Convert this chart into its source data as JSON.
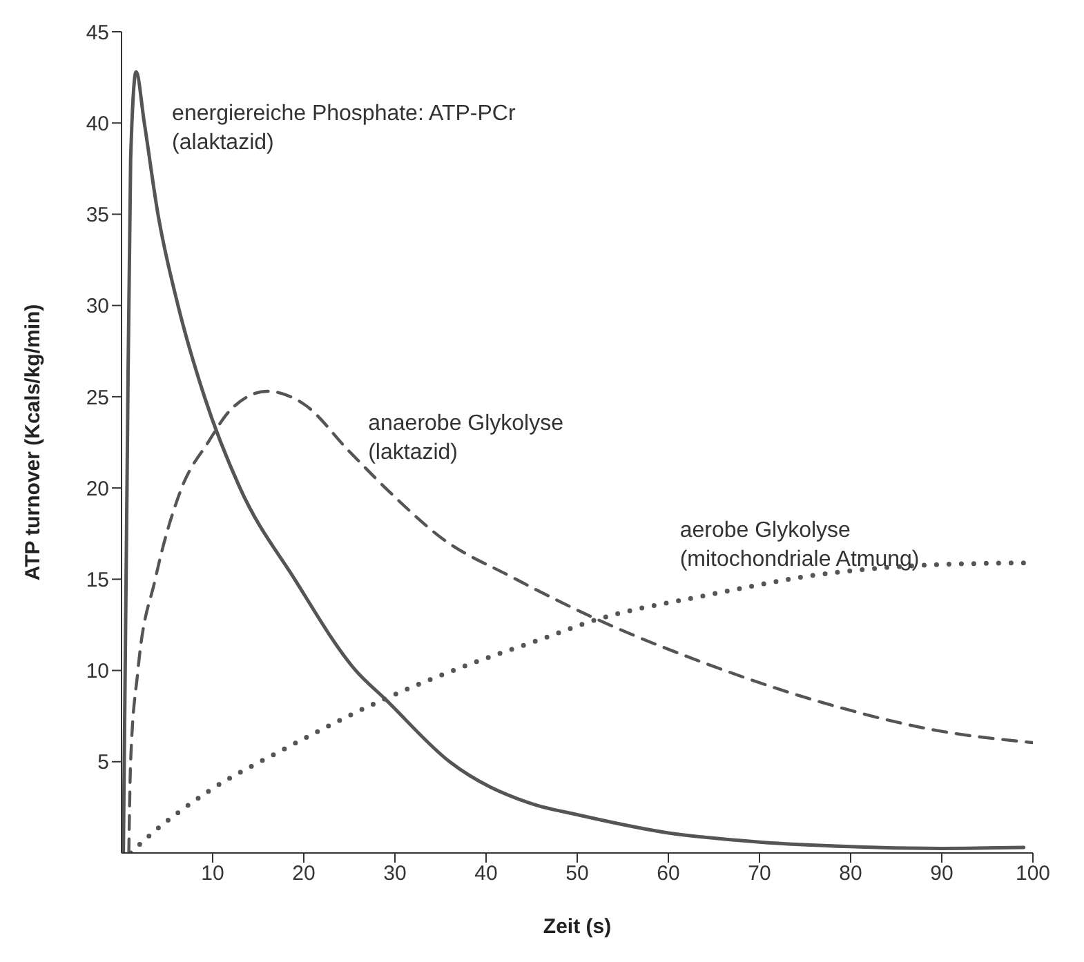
{
  "chart_data": {
    "type": "line",
    "xlabel": "Zeit (s)",
    "ylabel": "ATP turnover (Kcals/kg/min)",
    "xlim": [
      0,
      100
    ],
    "xticks": [
      10,
      20,
      30,
      40,
      50,
      60,
      70,
      80,
      90,
      100
    ],
    "ylim": [
      0,
      45
    ],
    "yticks": [
      5,
      10,
      15,
      20,
      25,
      30,
      35,
      40,
      45
    ],
    "grid": false,
    "marker": "none",
    "series": [
      {
        "name": "energiereiche Phosphate: ATP-PCr\n(alaktazid)",
        "color": "#555555",
        "line_style": "solid",
        "x": [
          0.2,
          0.6,
          1,
          1.6,
          2.5,
          4,
          6.2,
          9.1,
          13,
          19,
          25.7,
          29,
          36,
          45,
          50,
          60,
          70,
          80,
          90,
          99
        ],
        "values": [
          0,
          20,
          38,
          42.8,
          40,
          35,
          30,
          25,
          20,
          15,
          10,
          8.4,
          5,
          2.7,
          2.1,
          1.1,
          0.6,
          0.35,
          0.25,
          0.3
        ]
      },
      {
        "name": "anaerobe Glykolyse\n(laktazid)",
        "color": "#555555",
        "line_style": "dashed",
        "x": [
          0.8,
          1,
          1.8,
          3.7,
          6.6,
          9.5,
          12,
          16,
          20,
          25,
          30,
          35,
          42.9,
          52.2,
          64,
          77.2,
          89.6,
          99.9
        ],
        "values": [
          0,
          5,
          10,
          15,
          20,
          22.5,
          24.3,
          25.3,
          24.6,
          22,
          19.5,
          17.3,
          15.1,
          12.8,
          10.4,
          8.2,
          6.7,
          6.05
        ]
      },
      {
        "name": "aerobe Glykolyse\n(mitochondriale Atmung)",
        "color": "#555555",
        "line_style": "dotted",
        "x": [
          1,
          2.5,
          9.6,
          17.5,
          28.7,
          38.5,
          45.4,
          52.2,
          64,
          77.2,
          89.6,
          99.9
        ],
        "values": [
          0,
          0.7,
          3.4,
          5.6,
          8.4,
          10.4,
          11.6,
          12.8,
          14.1,
          15.3,
          15.8,
          15.9
        ]
      }
    ]
  }
}
